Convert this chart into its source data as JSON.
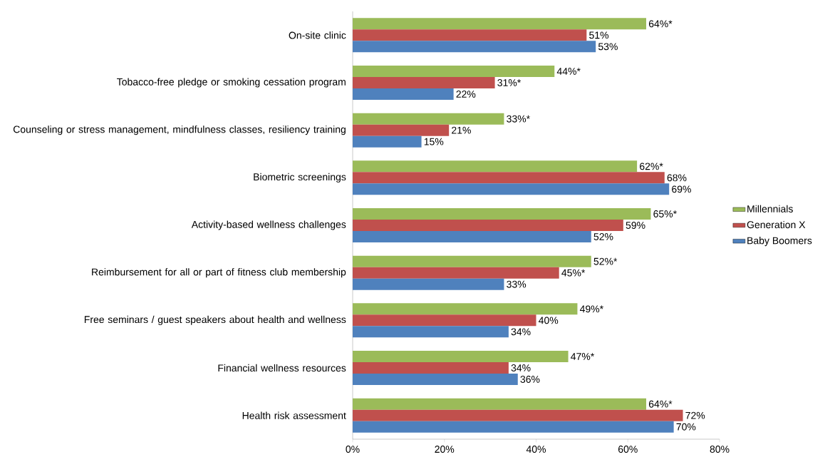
{
  "chart_data": {
    "type": "bar",
    "orientation": "horizontal",
    "categories": [
      "On-site clinic",
      "Tobacco-free pledge or smoking cessation program",
      "Counseling or stress management, mindfulness classes, resiliency training",
      "Biometric screenings",
      "Activity-based wellness challenges",
      "Reimbursement for all or part of fitness club membership",
      "Free seminars / guest speakers about health and wellness",
      "Financial wellness resources",
      "Health risk assessment"
    ],
    "series": [
      {
        "name": "Millennials",
        "color": "#9bbb59",
        "values": [
          64,
          44,
          33,
          62,
          65,
          52,
          49,
          47,
          64
        ],
        "value_labels": [
          "64%*",
          "44%*",
          "33%*",
          "62%*",
          "65%*",
          "52%*",
          "49%*",
          "47%*",
          "64%*"
        ]
      },
      {
        "name": "Generation X",
        "color": "#c0504d",
        "values": [
          51,
          31,
          21,
          68,
          59,
          45,
          40,
          34,
          72
        ],
        "value_labels": [
          "51%",
          "31%*",
          "21%",
          "68%",
          "59%",
          "45%*",
          "40%",
          "34%",
          "72%"
        ]
      },
      {
        "name": "Baby Boomers",
        "color": "#4f81bd",
        "values": [
          53,
          22,
          15,
          69,
          52,
          33,
          34,
          36,
          70
        ],
        "value_labels": [
          "53%",
          "22%",
          "15%",
          "69%",
          "52%",
          "33%",
          "34%",
          "36%",
          "70%"
        ]
      }
    ],
    "xlim": [
      0,
      80
    ],
    "xticks": [
      {
        "value": 0,
        "label": "0%"
      },
      {
        "value": 20,
        "label": "20%"
      },
      {
        "value": 40,
        "label": "40%"
      },
      {
        "value": 60,
        "label": "60%"
      },
      {
        "value": 80,
        "label": "80%"
      }
    ],
    "legend": "right"
  }
}
